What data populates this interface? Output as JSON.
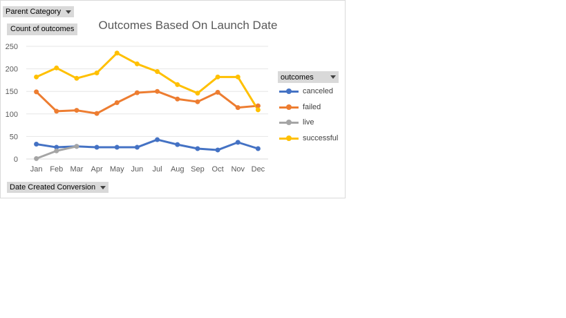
{
  "filters": {
    "parent_category": "Parent Category",
    "count_label": "Count of outcomes",
    "date_field": "Date Created Conversion",
    "legend_field": "outcomes"
  },
  "chart_data": {
    "type": "line",
    "title": "Outcomes Based On Launch Date",
    "xlabel": "",
    "ylabel": "",
    "ylim": [
      0,
      250
    ],
    "yticks": [
      0,
      50,
      100,
      150,
      200,
      250
    ],
    "grid": true,
    "legend_placement": "right",
    "categories": [
      "Jan",
      "Feb",
      "Mar",
      "Apr",
      "May",
      "Jun",
      "Jul",
      "Aug",
      "Sep",
      "Oct",
      "Nov",
      "Dec"
    ],
    "series": [
      {
        "name": "canceled",
        "color": "#4472c4",
        "values": [
          33,
          26,
          28,
          26,
          26,
          26,
          43,
          32,
          23,
          20,
          37,
          23
        ]
      },
      {
        "name": "failed",
        "color": "#ed7d31",
        "values": [
          149,
          106,
          108,
          101,
          125,
          147,
          150,
          133,
          127,
          148,
          114,
          118
        ]
      },
      {
        "name": "live",
        "color": "#a5a5a5",
        "values": [
          1,
          18,
          28,
          null,
          null,
          null,
          null,
          null,
          null,
          null,
          null,
          null
        ]
      },
      {
        "name": "successful",
        "color": "#ffc000",
        "values": [
          182,
          202,
          179,
          191,
          235,
          211,
          194,
          165,
          146,
          182,
          182,
          109
        ]
      }
    ]
  }
}
